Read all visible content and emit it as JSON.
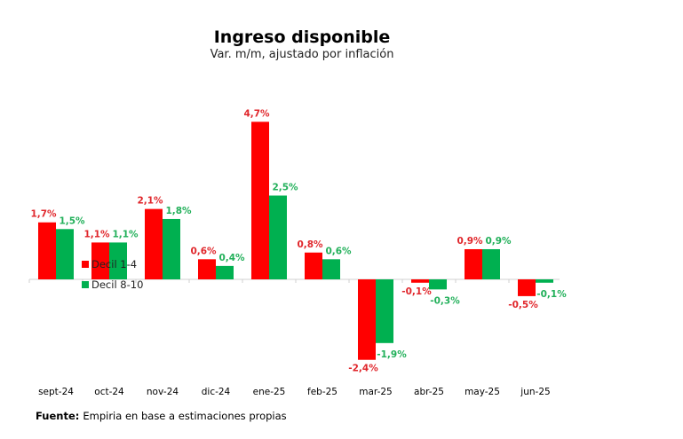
{
  "chart_data": {
    "type": "bar",
    "title": "Ingreso disponible",
    "subtitle": "Var. m/m, ajustado por inflación",
    "categories": [
      "sept-24",
      "oct-24",
      "nov-24",
      "dic-24",
      "ene-25",
      "feb-25",
      "mar-25",
      "abr-25",
      "may-25",
      "jun-25"
    ],
    "series": [
      {
        "name": "Decil 1-4",
        "color": "#ff0000",
        "label_color": "#e0262b",
        "values": [
          1.7,
          1.1,
          2.1,
          0.6,
          4.7,
          0.8,
          -2.4,
          -0.1,
          0.9,
          -0.5
        ],
        "labels": [
          "1,7%",
          "1,1%",
          "2,1%",
          "0,6%",
          "4,7%",
          "0,8%",
          "-2,4%",
          "-0,1%",
          "0,9%",
          "-0,5%"
        ]
      },
      {
        "name": "Decil 8-10",
        "color": "#00b050",
        "label_color": "#22b05a",
        "values": [
          1.5,
          1.1,
          1.8,
          0.4,
          2.5,
          0.6,
          -1.9,
          -0.3,
          0.9,
          -0.1
        ],
        "labels": [
          "1,5%",
          "1,1%",
          "1,8%",
          "0,4%",
          "2,5%",
          "0,6%",
          "-1,9%",
          "-0,3%",
          "0,9%",
          "-0,1%"
        ]
      }
    ],
    "xlabel": "",
    "ylabel": "",
    "grid": false,
    "legend": "left-center"
  },
  "footer": {
    "label": "Fuente:",
    "text": "Empiria en base a estimaciones propias"
  }
}
